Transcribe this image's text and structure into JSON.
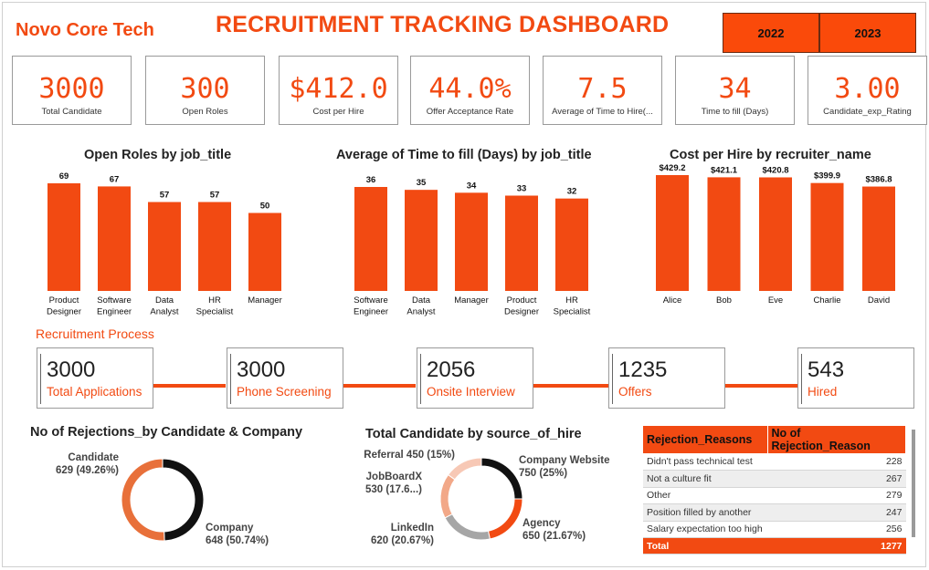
{
  "brand": "Novo Core Tech",
  "title": "RECRUITMENT TRACKING DASHBOARD",
  "years": [
    "2022",
    "2023"
  ],
  "colors": {
    "accent": "#f24a12",
    "accent_light": "#f7c8b5",
    "black": "#111111",
    "grey": "#a6a6a6",
    "company": "#e8703a"
  },
  "kpis": [
    {
      "value": "3000",
      "label": "Total Candidate"
    },
    {
      "value": "300",
      "label": "Open Roles"
    },
    {
      "value": "$412.0",
      "label": "Cost per Hire"
    },
    {
      "value": "44.0%",
      "label": "Offer Acceptance Rate"
    },
    {
      "value": "7.5",
      "label": "Average of Time to Hire(..."
    },
    {
      "value": "34",
      "label": "Time to fill (Days)"
    },
    {
      "value": "3.00",
      "label": "Candidate_exp_Rating"
    }
  ],
  "chart_data": [
    {
      "type": "bar",
      "title": "Open Roles by job_title",
      "categories": [
        [
          "Product",
          "Designer"
        ],
        [
          "Software",
          "Engineer"
        ],
        [
          "Data",
          "Analyst"
        ],
        [
          "HR",
          "Specialist"
        ],
        [
          "Manager"
        ]
      ],
      "values": [
        69,
        67,
        57,
        57,
        50
      ],
      "labels": [
        "69",
        "67",
        "57",
        "57",
        "50"
      ]
    },
    {
      "type": "bar",
      "title": "Average of Time to fill (Days) by job_title",
      "categories": [
        [
          "Software",
          "Engineer"
        ],
        [
          "Data",
          "Analyst"
        ],
        [
          "Manager"
        ],
        [
          "Product",
          "Designer"
        ],
        [
          "HR",
          "Specialist"
        ]
      ],
      "values": [
        36,
        35,
        34,
        33,
        32
      ],
      "labels": [
        "36",
        "35",
        "34",
        "33",
        "32"
      ]
    },
    {
      "type": "bar",
      "title": "Cost per Hire by recruiter_name",
      "categories": [
        [
          "Alice"
        ],
        [
          "Bob"
        ],
        [
          "Eve"
        ],
        [
          "Charlie"
        ],
        [
          "David"
        ]
      ],
      "values": [
        429.2,
        421.1,
        420.8,
        399.9,
        386.8
      ],
      "labels": [
        "$429.2",
        "$421.1",
        "$420.8",
        "$399.9",
        "$386.8"
      ]
    },
    {
      "type": "pie",
      "title": "No of Rejections_by Candidate & Company",
      "slices": [
        {
          "name": "Candidate",
          "value": 629,
          "display": "629 (49.26%)",
          "color": "#111111"
        },
        {
          "name": "Company",
          "value": 648,
          "display": "648 (50.74%)",
          "color": "#e8703a"
        }
      ]
    },
    {
      "type": "pie",
      "title": "Total Candidate by source_of_hire",
      "slices": [
        {
          "name": "Company Website",
          "value": 750,
          "display": "750 (25%)",
          "color": "#111111"
        },
        {
          "name": "Agency",
          "value": 650,
          "display": "650 (21.67%)",
          "color": "#f24a12"
        },
        {
          "name": "LinkedIn",
          "value": 620,
          "display": "620 (20.67%)",
          "color": "#a6a6a6"
        },
        {
          "name": "JobBoardX",
          "value": 530,
          "display": "530 (17.6...)",
          "color": "#f2a888"
        },
        {
          "name": "Referral",
          "value": 450,
          "display": "450 (15%)",
          "color": "#f7c8b5"
        }
      ]
    }
  ],
  "process": {
    "label": "Recruitment Process",
    "steps": [
      {
        "value": "3000",
        "label": "Total Applications"
      },
      {
        "value": "3000",
        "label": "Phone Screening"
      },
      {
        "value": "2056",
        "label": "Onsite Interview"
      },
      {
        "value": "1235",
        "label": "Offers"
      },
      {
        "value": "543",
        "label": "Hired"
      }
    ]
  },
  "rejection_table": {
    "headers": [
      "Rejection_Reasons",
      "No of Rejection_Reason"
    ],
    "rows": [
      [
        "Didn't pass technical test",
        "228"
      ],
      [
        "Not a culture fit",
        "267"
      ],
      [
        "Other",
        "279"
      ],
      [
        "Position filled by another",
        "247"
      ],
      [
        "Salary expectation too high",
        "256"
      ]
    ],
    "total": [
      "Total",
      "1277"
    ]
  }
}
